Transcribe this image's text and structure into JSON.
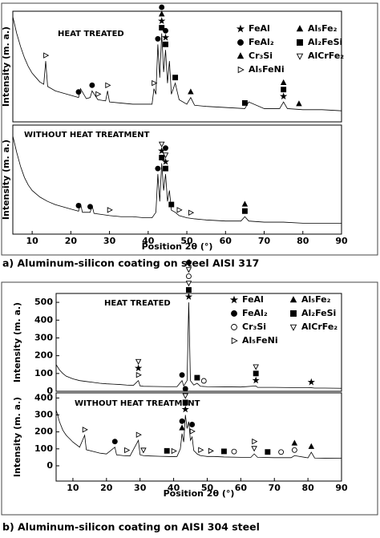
{
  "captions": [
    "a) Aluminum-silicon coating on steel AISI 317",
    "b) Aluminum-silicon coating on AISI 304 steel"
  ],
  "chart_data": [
    {
      "type": "line",
      "annotation": "HEAT TREATED",
      "ylabel": "Intensity (m. a.)",
      "xlim": [
        5,
        90
      ],
      "ylim": [
        0,
        100
      ],
      "color": "#000000",
      "phases": [
        {
          "name": "FeAl",
          "symbol": "star"
        },
        {
          "name": "FeAl₂",
          "symbol": "circle"
        },
        {
          "name": "Cr₃Si",
          "symbol": "triangle"
        },
        {
          "name": "Al₅FeNi",
          "symbol": "open-right"
        },
        {
          "name": "Al₅Fe₂",
          "symbol": "triangle"
        },
        {
          "name": "Al₂FeSi",
          "symbol": "square"
        },
        {
          "name": "AlCrFe₂",
          "symbol": "open-down"
        }
      ],
      "x": [
        5,
        6,
        7,
        8,
        9,
        10,
        11,
        12,
        13,
        13.5,
        14,
        16,
        18,
        20,
        22,
        22.5,
        24,
        25,
        25.5,
        27,
        29,
        29.5,
        30,
        33,
        36,
        39,
        41,
        41.5,
        42,
        42.5,
        43,
        43.5,
        44,
        44.5,
        45,
        45.5,
        46,
        47,
        48,
        50,
        51,
        52,
        55,
        60,
        65,
        66,
        70,
        74,
        75,
        76,
        80,
        85,
        90
      ],
      "values": [
        95,
        80,
        68,
        58,
        50,
        44,
        40,
        36,
        34,
        55,
        32,
        28,
        26,
        24,
        22,
        30,
        21,
        22,
        28,
        20,
        19,
        28,
        18,
        17,
        16,
        16,
        16,
        30,
        25,
        70,
        40,
        80,
        45,
        65,
        35,
        55,
        25,
        35,
        20,
        16,
        22,
        15,
        14,
        13,
        12,
        18,
        12,
        12,
        18,
        12,
        11,
        11,
        10
      ],
      "peak_markers": [
        {
          "x": 13.5,
          "phases": [
            "Al₅FeNi"
          ]
        },
        {
          "x": 22,
          "phases": [
            "FeAl₂"
          ]
        },
        {
          "x": 25.5,
          "phases": [
            "FeAl₂"
          ]
        },
        {
          "x": 27,
          "phases": [
            "Al₅FeNi"
          ]
        },
        {
          "x": 29.5,
          "phases": [
            "Al₅FeNi"
          ]
        },
        {
          "x": 41.5,
          "phases": [
            "Al₅FeNi"
          ]
        },
        {
          "x": 42.5,
          "phases": [
            "FeAl₂"
          ]
        },
        {
          "x": 43.5,
          "phases": [
            "Al₂FeSi",
            "FeAl",
            "Cr₃Si",
            "FeAl₂"
          ]
        },
        {
          "x": 44.5,
          "phases": [
            "Al₂FeSi",
            "FeAl",
            "FeAl₂"
          ]
        },
        {
          "x": 47,
          "phases": [
            "Al₂FeSi"
          ]
        },
        {
          "x": 51,
          "phases": [
            "Cr₃Si"
          ]
        },
        {
          "x": 65,
          "phases": [
            "Al₂FeSi"
          ]
        },
        {
          "x": 75,
          "phases": [
            "FeAl",
            "Al₂FeSi",
            "Al₅Fe₂"
          ]
        },
        {
          "x": 79,
          "phases": [
            "Cr₃Si"
          ]
        }
      ]
    },
    {
      "type": "line",
      "annotation": "WITHOUT HEAT TREATMENT",
      "ylabel": "Intensity (m. a.)",
      "xlabel": "Position 2θ (°)",
      "xlim": [
        5,
        90
      ],
      "ylim": [
        0,
        100
      ],
      "xticks": [
        10,
        20,
        30,
        40,
        50,
        60,
        70,
        80,
        90
      ],
      "color": "#000000",
      "x": [
        5,
        6,
        7,
        8,
        9,
        10,
        12,
        14,
        16,
        18,
        20,
        22,
        22.5,
        23,
        25,
        25.5,
        26,
        28,
        30,
        33,
        36,
        39,
        41,
        42,
        42.5,
        43,
        43.5,
        44,
        44.5,
        45,
        45.5,
        46,
        47,
        48,
        50,
        52,
        55,
        60,
        64,
        65,
        66,
        70,
        75,
        80,
        85,
        90
      ],
      "values": [
        90,
        75,
        62,
        52,
        45,
        40,
        34,
        30,
        27,
        25,
        23,
        21,
        28,
        20,
        20,
        26,
        19,
        18,
        17,
        16,
        16,
        15,
        15,
        20,
        55,
        30,
        65,
        40,
        55,
        30,
        40,
        22,
        20,
        17,
        15,
        14,
        13,
        12,
        12,
        16,
        12,
        11,
        11,
        10,
        10,
        10
      ],
      "peak_markers": [
        {
          "x": 22,
          "phases": [
            "FeAl₂"
          ]
        },
        {
          "x": 25,
          "phases": [
            "FeAl₂"
          ]
        },
        {
          "x": 30,
          "phases": [
            "Al₅FeNi"
          ]
        },
        {
          "x": 42.5,
          "phases": [
            "FeAl₂"
          ]
        },
        {
          "x": 43.5,
          "phases": [
            "Al₂FeSi",
            "FeAl",
            "AlCrFe₂"
          ]
        },
        {
          "x": 44.5,
          "phases": [
            "Al₂FeSi",
            "FeAl",
            "AlCrFe₂",
            "FeAl₂"
          ]
        },
        {
          "x": 46,
          "phases": [
            "Al₂FeSi"
          ]
        },
        {
          "x": 48,
          "phases": [
            "Al₅FeNi"
          ]
        },
        {
          "x": 51,
          "phases": [
            "Al₅FeNi"
          ]
        },
        {
          "x": 65,
          "phases": [
            "Al₂FeSi",
            "Cr₃Si"
          ]
        }
      ]
    },
    {
      "type": "line",
      "annotation": "HEAT TREATED",
      "ylabel": "Intensity (m. a.)",
      "xlim": [
        5,
        90
      ],
      "ylim": [
        0,
        550
      ],
      "yticks": [
        0,
        100,
        200,
        300,
        400,
        500
      ],
      "color": "#000000",
      "phases": [
        {
          "name": "FeAl",
          "symbol": "star"
        },
        {
          "name": "FeAl₂",
          "symbol": "circle"
        },
        {
          "name": "Cr₃Si",
          "symbol": "open-circle"
        },
        {
          "name": "Al₅FeNi",
          "symbol": "open-right"
        },
        {
          "name": "Al₅Fe₂",
          "symbol": "triangle"
        },
        {
          "name": "Al₂FeSi",
          "symbol": "square"
        },
        {
          "name": "AlCrFe₂",
          "symbol": "open-down"
        }
      ],
      "x": [
        5,
        6,
        7,
        8,
        10,
        12,
        14,
        16,
        18,
        20,
        22,
        24,
        26,
        28,
        29.5,
        30,
        31,
        34,
        38,
        41,
        42.5,
        43,
        44,
        44.5,
        45,
        46,
        47,
        48,
        50,
        55,
        60,
        64.5,
        65,
        70,
        75,
        80,
        81,
        82,
        85,
        90
      ],
      "values": [
        150,
        120,
        100,
        85,
        70,
        60,
        55,
        50,
        45,
        42,
        40,
        38,
        35,
        33,
        60,
        30,
        28,
        27,
        26,
        26,
        60,
        30,
        60,
        500,
        60,
        35,
        45,
        28,
        26,
        25,
        24,
        30,
        22,
        22,
        21,
        21,
        20,
        18,
        18,
        17
      ],
      "peak_markers": [
        {
          "x": 29.5,
          "phases": [
            "Al₅FeNi",
            "FeAl",
            "AlCrFe₂"
          ]
        },
        {
          "x": 42.5,
          "phases": [
            "FeAl₂"
          ]
        },
        {
          "x": 44.5,
          "phases": [
            "FeAl",
            "Al₂FeSi",
            "AlCrFe₂",
            "Cr₃Si",
            "AlCrFe₂",
            "FeAl₂"
          ]
        },
        {
          "x": 47,
          "phases": [
            "Al₂FeSi"
          ]
        },
        {
          "x": 49,
          "phases": [
            "Cr₃Si"
          ]
        },
        {
          "x": 64.5,
          "phases": [
            "FeAl",
            "Al₂FeSi",
            "AlCrFe₂"
          ]
        },
        {
          "x": 81,
          "phases": [
            "FeAl"
          ]
        }
      ]
    },
    {
      "type": "line",
      "annotation": "WITHOUT HEAT TREATMENT",
      "ylabel": "Intensity (m. a.)",
      "xlabel": "Position 2θ (°)",
      "xlim": [
        5,
        90
      ],
      "ylim": [
        -90,
        430
      ],
      "yticks": [
        0,
        100,
        200,
        300,
        400
      ],
      "xticks": [
        10,
        20,
        30,
        40,
        50,
        60,
        70,
        80,
        90
      ],
      "color": "#000000",
      "x": [
        5,
        6,
        7,
        8,
        10,
        12,
        13.5,
        14,
        16,
        18,
        20,
        22.5,
        23,
        25,
        27,
        29.5,
        30,
        31,
        33,
        36,
        38,
        40,
        41,
        42,
        42.5,
        43,
        43.5,
        44,
        44.5,
        45,
        45.5,
        46,
        47,
        48,
        50,
        52,
        55,
        60,
        63,
        64,
        65,
        70,
        75,
        76,
        80,
        81,
        82,
        85,
        90
      ],
      "values": [
        330,
        260,
        210,
        180,
        140,
        110,
        180,
        95,
        85,
        75,
        70,
        110,
        65,
        60,
        58,
        150,
        65,
        60,
        58,
        56,
        55,
        54,
        55,
        100,
        190,
        140,
        300,
        220,
        260,
        150,
        170,
        90,
        70,
        60,
        55,
        55,
        52,
        50,
        50,
        70,
        50,
        48,
        48,
        60,
        47,
        80,
        46,
        45,
        44
      ],
      "peak_markers": [
        {
          "x": 13.5,
          "phases": [
            "Al₅FeNi"
          ]
        },
        {
          "x": 22.5,
          "phases": [
            "FeAl₂"
          ]
        },
        {
          "x": 26,
          "phases": [
            "Al₅FeNi"
          ]
        },
        {
          "x": 29.5,
          "phases": [
            "Al₅FeNi"
          ]
        },
        {
          "x": 31,
          "phases": [
            "AlCrFe₂"
          ]
        },
        {
          "x": 38,
          "phases": [
            "Al₂FeSi"
          ]
        },
        {
          "x": 40,
          "phases": [
            "Al₅FeNi"
          ]
        },
        {
          "x": 42.5,
          "phases": [
            "Al₅Fe₂",
            "FeAl₂"
          ]
        },
        {
          "x": 43.5,
          "phases": [
            "FeAl",
            "Al₂FeSi",
            "AlCrFe₂",
            "FeAl₂"
          ]
        },
        {
          "x": 45.5,
          "phases": [
            "Al₅FeNi",
            "FeAl₂"
          ]
        },
        {
          "x": 48,
          "phases": [
            "Al₅FeNi"
          ]
        },
        {
          "x": 51,
          "phases": [
            "Al₅FeNi"
          ]
        },
        {
          "x": 55,
          "phases": [
            "Al₂FeSi"
          ]
        },
        {
          "x": 58,
          "phases": [
            "Cr₃Si"
          ]
        },
        {
          "x": 64,
          "phases": [
            "AlCrFe₂",
            "Al₅FeNi"
          ]
        },
        {
          "x": 68,
          "phases": [
            "Al₂FeSi"
          ]
        },
        {
          "x": 72,
          "phases": [
            "Cr₃Si"
          ]
        },
        {
          "x": 76,
          "phases": [
            "Cr₃Si",
            "Al₅Fe₂"
          ]
        },
        {
          "x": 81,
          "phases": [
            "Al₅Fe₂"
          ]
        }
      ]
    }
  ]
}
